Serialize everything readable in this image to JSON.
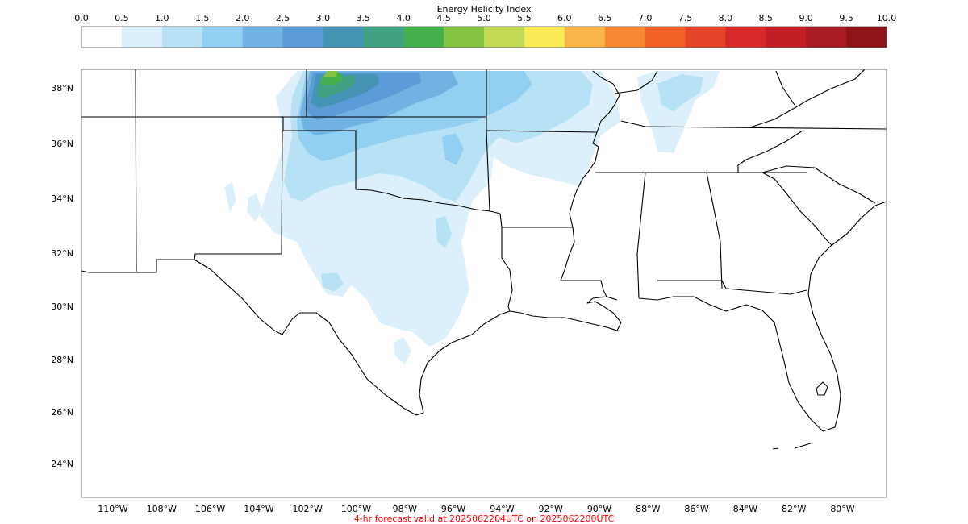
{
  "colorbar": {
    "title": "Energy Helicity Index",
    "ticks": [
      "0.0",
      "0.5",
      "1.0",
      "1.5",
      "2.0",
      "2.5",
      "3.0",
      "3.5",
      "4.0",
      "4.5",
      "5.0",
      "5.5",
      "6.0",
      "6.5",
      "7.0",
      "7.5",
      "8.0",
      "8.5",
      "9.0",
      "9.5",
      "10.0"
    ],
    "colors": [
      "#ffffff",
      "#dbf0fb",
      "#b7e2f6",
      "#93cff1",
      "#70b2e2",
      "#5a9bd8",
      "#4593b5",
      "#41a283",
      "#46b04d",
      "#83c341",
      "#c2d955",
      "#fbe855",
      "#f9b548",
      "#f68834",
      "#f16128",
      "#e44428",
      "#d7282a",
      "#c11e26",
      "#a61c22",
      "#8d1419"
    ]
  },
  "map": {
    "lat_labels": [
      "38°N",
      "36°N",
      "34°N",
      "32°N",
      "30°N",
      "28°N",
      "26°N",
      "24°N"
    ],
    "lon_labels": [
      "110°W",
      "108°W",
      "106°W",
      "104°W",
      "102°W",
      "100°W",
      "98°W",
      "96°W",
      "94°W",
      "92°W",
      "90°W",
      "88°W",
      "86°W",
      "84°W",
      "82°W",
      "80°W"
    ]
  },
  "footer": "4-hr forecast valid at 2025062204UTC on 2025062200UTC"
}
